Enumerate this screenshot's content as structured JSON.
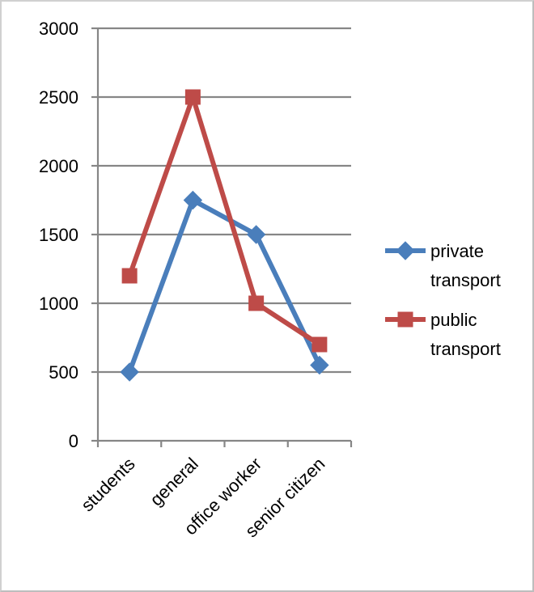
{
  "chart_data": {
    "type": "line",
    "title": "",
    "xlabel": "",
    "ylabel": "",
    "categories": [
      "students",
      "general",
      "office worker",
      "senior citizen"
    ],
    "ylim": [
      0,
      3000
    ],
    "yticks": [
      0,
      500,
      1000,
      1500,
      2000,
      2500,
      3000
    ],
    "grid": "horizontal",
    "legend_position": "right",
    "series": [
      {
        "name": "private transport",
        "legend_lines": [
          "private",
          "transport"
        ],
        "values": [
          500,
          1750,
          1500,
          550
        ],
        "color": "#4a7ebb",
        "marker": "diamond"
      },
      {
        "name": "public transport",
        "legend_lines": [
          "public",
          "transport"
        ],
        "values": [
          1200,
          2500,
          1000,
          700
        ],
        "color": "#be4b48",
        "marker": "square"
      }
    ]
  }
}
